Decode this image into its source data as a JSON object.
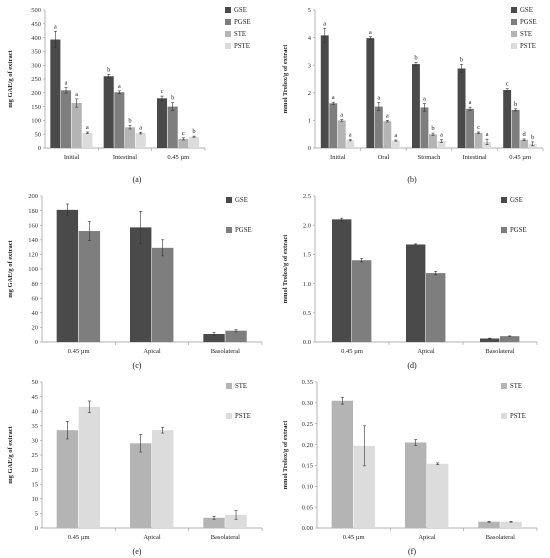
{
  "colors": {
    "GSE": "#4a4a4a",
    "PGSE": "#7e7e7e",
    "STE": "#b4b4b4",
    "PSTE": "#dcdcdc",
    "axis": "#999999",
    "err": "#333333"
  },
  "chart_data": [
    {
      "id": "a",
      "type": "bar",
      "panel_label": "(a)",
      "ylabel": "mg GAE/g of extract",
      "ylim": [
        0,
        500
      ],
      "yticks": [
        0,
        50,
        100,
        150,
        200,
        250,
        300,
        350,
        400,
        450,
        500
      ],
      "ytick_decimals": 0,
      "categories": [
        "Initial",
        "Intestinal",
        "0.45 µm"
      ],
      "legend": "top-right-stacked",
      "series": [
        {
          "name": "GSE",
          "values": [
            393,
            260,
            180
          ],
          "errors": [
            30,
            6,
            8
          ],
          "letters": [
            "a",
            "b",
            "c"
          ]
        },
        {
          "name": "PGSE",
          "values": [
            209,
            202,
            150
          ],
          "errors": [
            10,
            5,
            14
          ],
          "letters": [
            "a",
            "a",
            "b"
          ]
        },
        {
          "name": "STE",
          "values": [
            163,
            75,
            33
          ],
          "errors": [
            15,
            6,
            4
          ],
          "letters": [
            "a",
            "b",
            "c"
          ]
        },
        {
          "name": "PSTE",
          "values": [
            55,
            54,
            41
          ],
          "errors": [
            3,
            3,
            2
          ],
          "letters": [
            "a",
            "a",
            "b"
          ]
        }
      ]
    },
    {
      "id": "b",
      "type": "bar",
      "panel_label": "(b)",
      "ylabel": "mmol Trolox/g of extract",
      "ylim": [
        0,
        5
      ],
      "yticks": [
        0,
        1,
        2,
        3,
        4,
        5
      ],
      "ytick_decimals": 0,
      "categories": [
        "Initial",
        "Oral",
        "Stomach",
        "Intestinal",
        "0.45 µm"
      ],
      "legend": "top-right-stacked",
      "series": [
        {
          "name": "GSE",
          "values": [
            4.08,
            3.98,
            3.04,
            2.88,
            2.1
          ],
          "errors": [
            0.25,
            0.05,
            0.06,
            0.15,
            0.05
          ],
          "letters": [
            "a",
            "a",
            "b",
            "b",
            "c"
          ]
        },
        {
          "name": "PGSE",
          "values": [
            1.62,
            1.5,
            1.47,
            1.42,
            1.38
          ],
          "errors": [
            0.04,
            0.15,
            0.14,
            0.06,
            0.04
          ],
          "letters": [
            "a",
            "a",
            "a",
            "a",
            "b"
          ]
        },
        {
          "name": "STE",
          "values": [
            1.0,
            0.97,
            0.5,
            0.55,
            0.3
          ],
          "errors": [
            0.03,
            0.03,
            0.04,
            0.03,
            0.03
          ],
          "letters": [
            "a",
            "a",
            "b",
            "c",
            "d"
          ]
        },
        {
          "name": "PSTE",
          "values": [
            0.28,
            0.27,
            0.25,
            0.22,
            0.15
          ],
          "errors": [
            0.02,
            0.02,
            0.05,
            0.1,
            0.07
          ],
          "letters": [
            "a",
            "a",
            "a",
            "a",
            "b"
          ]
        }
      ]
    },
    {
      "id": "c",
      "type": "bar",
      "panel_label": "(c)",
      "ylabel": "mg GAE/g of extract",
      "ylim": [
        0,
        200
      ],
      "yticks": [
        0,
        20,
        40,
        60,
        80,
        100,
        120,
        140,
        160,
        180,
        200
      ],
      "ytick_decimals": 0,
      "categories": [
        "0.45 µm",
        "Apical",
        "Basolateral"
      ],
      "legend": "top-right-spaced",
      "series": [
        {
          "name": "GSE",
          "values": [
            181,
            157,
            11
          ],
          "errors": [
            8,
            22,
            2
          ]
        },
        {
          "name": "PGSE",
          "values": [
            152,
            129,
            15.5
          ],
          "errors": [
            13,
            11,
            1.5
          ]
        }
      ]
    },
    {
      "id": "d",
      "type": "bar",
      "panel_label": "(d)",
      "ylabel": "mmol Trolox/g of extract",
      "ylim": [
        0,
        2.5
      ],
      "yticks": [
        0,
        0.5,
        1.0,
        1.5,
        2.0,
        2.5
      ],
      "ytick_decimals": 1,
      "categories": [
        "0.45 µm",
        "Apical",
        "Basolateral"
      ],
      "legend": "top-right-spaced",
      "series": [
        {
          "name": "GSE",
          "values": [
            2.1,
            1.67,
            0.06
          ],
          "errors": [
            0.02,
            0.01,
            0.005
          ]
        },
        {
          "name": "PGSE",
          "values": [
            1.4,
            1.18,
            0.1
          ],
          "errors": [
            0.03,
            0.03,
            0.005
          ]
        }
      ]
    },
    {
      "id": "e",
      "type": "bar",
      "panel_label": "(e)",
      "ylabel": "mg GAE/g of extract",
      "ylim": [
        0,
        50
      ],
      "yticks": [
        0,
        5,
        10,
        15,
        20,
        25,
        30,
        35,
        40,
        45,
        50
      ],
      "ytick_decimals": 0,
      "categories": [
        "0.45 µm",
        "Apical",
        "Basolateral"
      ],
      "legend": "top-right-spaced",
      "series": [
        {
          "name": "STE",
          "values": [
            33.5,
            29,
            3.5
          ],
          "errors": [
            3,
            3,
            0.5
          ]
        },
        {
          "name": "PSTE",
          "values": [
            41.5,
            33.5,
            4.5
          ],
          "errors": [
            2,
            1,
            1.5
          ]
        }
      ]
    },
    {
      "id": "f",
      "type": "bar",
      "panel_label": "(f)",
      "ylabel": "mmol Trolox/g of extract",
      "ylim": [
        0,
        0.35
      ],
      "yticks": [
        0,
        0.05,
        0.1,
        0.15,
        0.2,
        0.25,
        0.3,
        0.35
      ],
      "ytick_decimals": 2,
      "categories": [
        "0.45 µm",
        "Apical",
        "Basolateral"
      ],
      "legend": "top-right-spaced",
      "series": [
        {
          "name": "STE",
          "values": [
            0.305,
            0.205,
            0.015
          ],
          "errors": [
            0.008,
            0.007,
            0.001
          ]
        },
        {
          "name": "PSTE",
          "values": [
            0.197,
            0.154,
            0.015
          ],
          "errors": [
            0.048,
            0.002,
            0.001
          ]
        }
      ]
    }
  ]
}
